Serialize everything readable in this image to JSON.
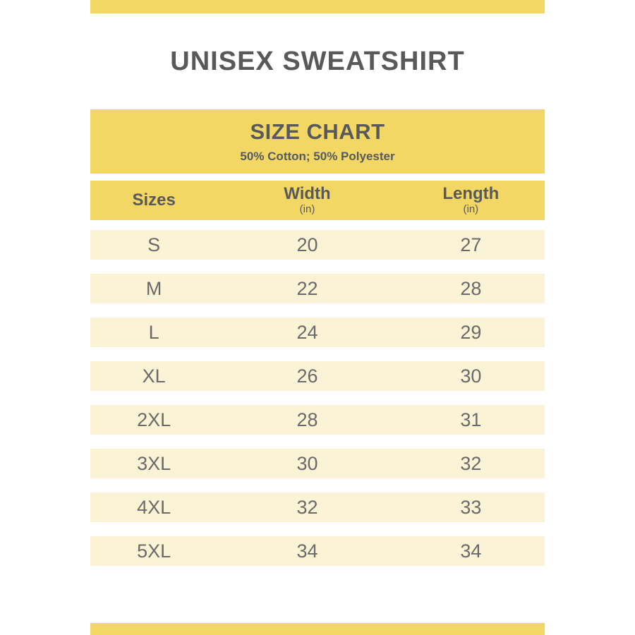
{
  "page": {
    "title": "UNISEX SWEATSHIRT"
  },
  "banner": {
    "title": "SIZE CHART",
    "subtitle": "50% Cotton; 50% Polyester"
  },
  "colors": {
    "accent_yellow": "#F3D765",
    "row_cream": "#FBF3D6",
    "heading_text": "#58595B",
    "data_text": "#6A6A6A"
  },
  "chart_data": {
    "type": "table",
    "title": "SIZE CHART",
    "subtitle": "50% Cotton; 50% Polyester",
    "columns": [
      {
        "key": "size",
        "label": "Sizes",
        "unit": ""
      },
      {
        "key": "width",
        "label": "Width",
        "unit": "(in)"
      },
      {
        "key": "length",
        "label": "Length",
        "unit": "(in)"
      }
    ],
    "rows": [
      {
        "size": "S",
        "width": "20",
        "length": "27"
      },
      {
        "size": "M",
        "width": "22",
        "length": "28"
      },
      {
        "size": "L",
        "width": "24",
        "length": "29"
      },
      {
        "size": "XL",
        "width": "26",
        "length": "30"
      },
      {
        "size": "2XL",
        "width": "28",
        "length": "31"
      },
      {
        "size": "3XL",
        "width": "30",
        "length": "32"
      },
      {
        "size": "4XL",
        "width": "32",
        "length": "33"
      },
      {
        "size": "5XL",
        "width": "34",
        "length": "34"
      }
    ]
  }
}
